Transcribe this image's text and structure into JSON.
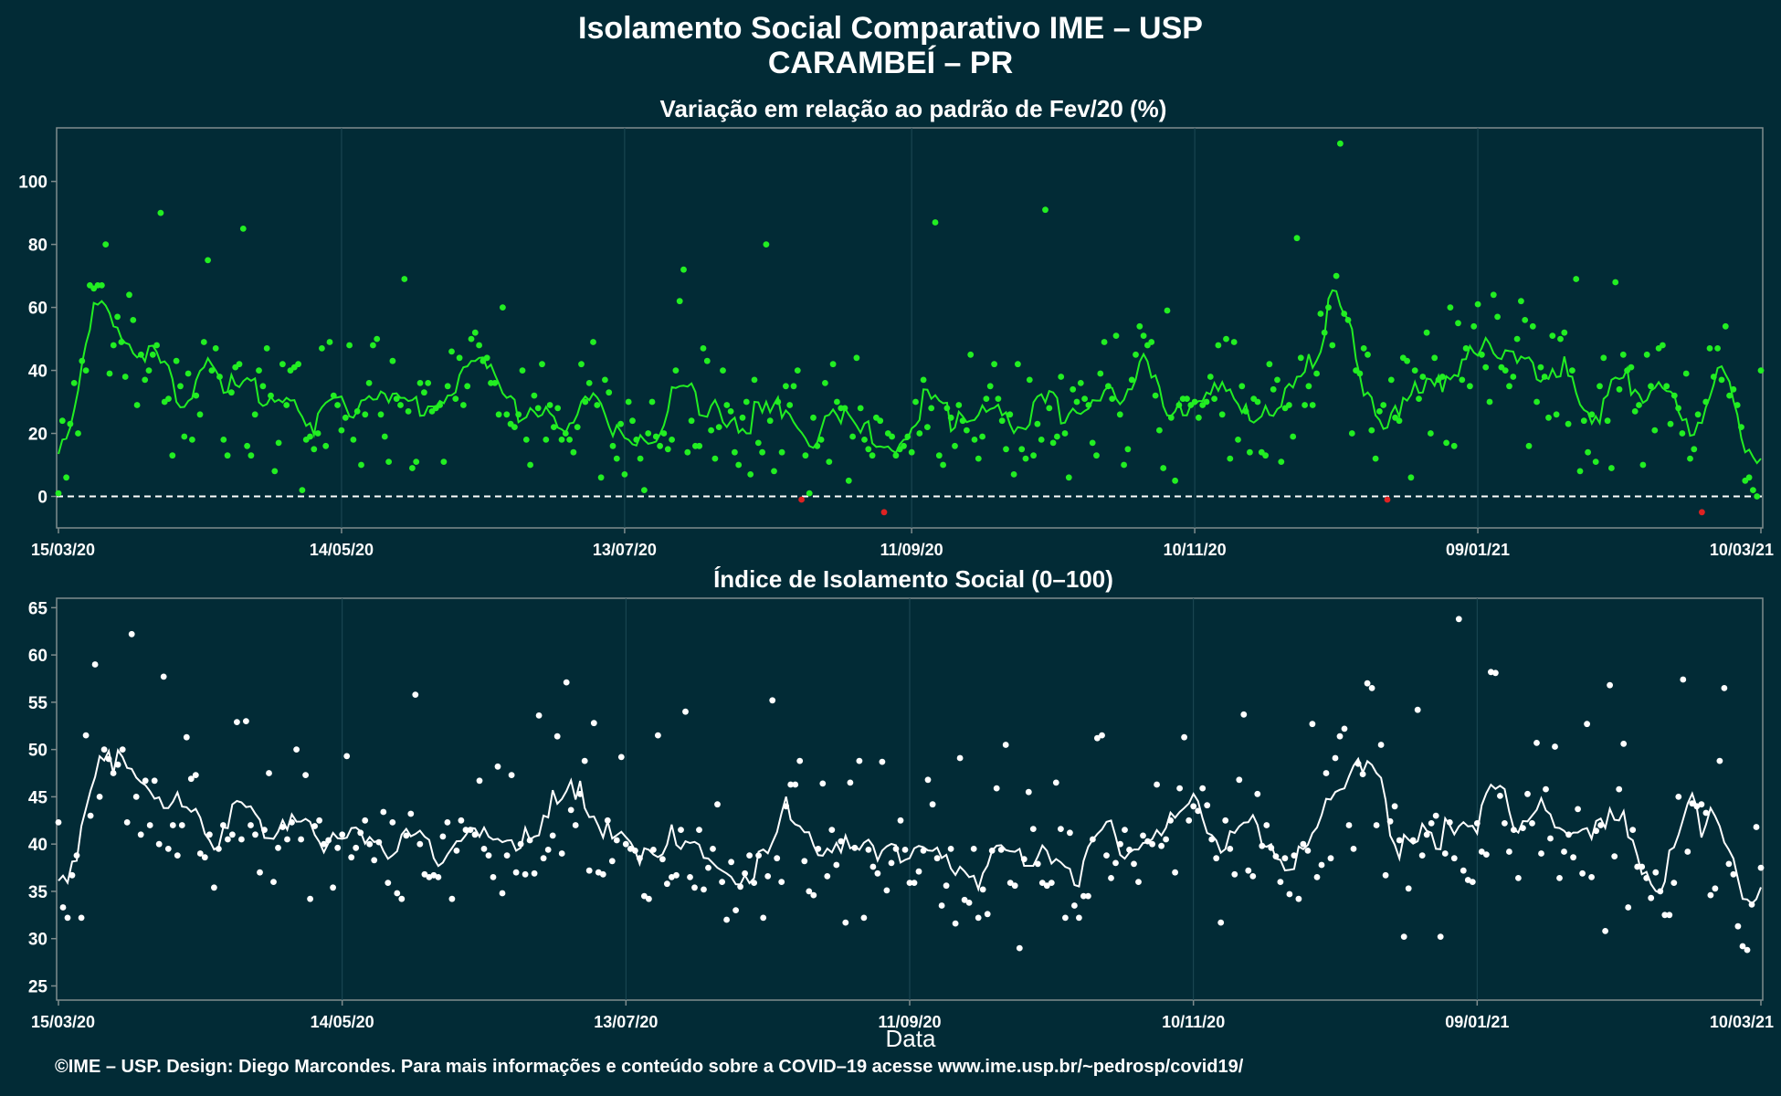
{
  "header": {
    "title": "Isolamento Social Comparativo IME – USP",
    "subtitle": "CARAMBEÍ – PR"
  },
  "footer": {
    "credit": "©IME – USP. Design: Diego Marcondes. Para mais informações e conteúdo sobre a COVID–19 acesse www.ime.usp.br/~pedrosp/covid19/"
  },
  "colors": {
    "background": "#022b36",
    "panel_border": "#7f8c8d",
    "grid": "#1e4a55",
    "variation_points": "#22ee22",
    "variation_line": "#22ee22",
    "negative_points": "#dd2222",
    "index_points": "#ffffff",
    "index_line": "#ffffff"
  },
  "chart_data": [
    {
      "type": "scatter",
      "title": "Variação em relação ao padrão de Fev/20 (%)",
      "xlabel": "",
      "ylabel": "",
      "x_tick_labels": [
        "15/03/20",
        "14/05/20",
        "13/07/20",
        "11/09/20",
        "10/11/20",
        "09/01/21",
        "10/03/21"
      ],
      "y_ticks": [
        0,
        20,
        40,
        60,
        80,
        100
      ],
      "ylim": [
        -10,
        117
      ],
      "reference_line": 0,
      "grid": true,
      "series": [
        {
          "values": [
            1,
            24,
            6,
            23,
            36,
            20,
            43,
            40,
            67,
            66,
            67,
            67,
            80,
            39,
            48,
            57,
            49,
            38,
            64,
            56,
            29,
            45,
            37,
            40,
            45,
            48,
            90,
            30,
            31,
            13,
            43,
            35,
            19,
            39,
            18,
            32,
            26,
            49,
            75,
            40,
            47,
            38,
            18,
            13,
            33,
            41,
            42,
            85,
            16,
            13,
            26,
            40,
            35,
            47,
            32,
            8,
            17,
            42,
            29,
            40,
            41,
            42,
            2,
            18,
            19,
            15,
            20,
            47,
            16,
            49,
            32,
            29,
            21,
            25,
            48,
            18,
            27,
            10,
            26,
            36,
            48,
            50,
            26,
            19,
            11,
            43,
            31,
            29,
            69,
            27,
            9,
            11,
            36,
            33,
            36,
            27,
            28,
            29,
            11,
            35,
            46,
            31,
            44,
            29,
            35,
            50,
            52,
            48,
            43,
            44,
            36,
            36,
            26,
            60,
            26,
            23,
            22,
            26,
            40,
            18,
            10,
            32,
            28,
            42,
            18,
            29,
            22,
            28,
            18,
            20,
            18,
            14,
            22,
            42,
            30,
            36,
            49,
            29,
            6,
            37,
            33,
            16,
            12,
            23,
            7,
            30,
            24,
            18,
            12,
            2,
            20,
            30,
            19,
            16,
            20,
            15,
            18,
            40,
            62,
            72,
            14,
            24,
            16,
            16,
            47,
            43,
            21,
            12,
            22,
            40,
            29,
            27,
            14,
            10,
            25,
            30,
            7,
            37,
            17,
            14,
            80,
            24,
            8,
            30,
            14,
            35,
            29,
            35,
            40,
            -1,
            13,
            1,
            25,
            16,
            18,
            36,
            11,
            42,
            30,
            28,
            28,
            5,
            19,
            44,
            28,
            18,
            15,
            13,
            25,
            24,
            -5,
            20,
            19,
            13,
            15,
            16,
            19,
            14,
            30,
            20,
            37,
            22,
            28,
            87,
            13,
            10,
            28,
            25,
            16,
            29,
            24,
            21,
            45,
            18,
            12,
            19,
            31,
            35,
            42,
            31,
            24,
            15,
            26,
            7,
            42,
            15,
            12,
            37,
            13,
            23,
            18,
            91,
            28,
            17,
            19,
            38,
            20,
            6,
            34,
            30,
            36,
            31,
            29,
            17,
            13,
            39,
            49,
            35,
            31,
            51,
            26,
            10,
            15,
            37,
            45,
            54,
            51,
            48,
            49,
            32,
            21,
            9,
            59,
            25,
            5,
            29,
            31,
            31,
            29,
            30,
            25,
            29,
            30,
            38,
            31,
            48,
            26,
            50,
            12,
            49,
            18,
            35,
            27,
            14,
            31,
            30,
            14,
            13,
            42,
            34,
            37,
            11,
            28,
            29,
            19,
            82,
            44,
            29,
            35,
            29,
            39,
            58,
            52,
            60,
            48,
            70,
            112,
            58,
            56,
            20,
            40,
            39,
            47,
            45,
            21,
            12,
            27,
            29,
            -1,
            37,
            25,
            24,
            44,
            43,
            6,
            40,
            31,
            38,
            52,
            20,
            44,
            37,
            38,
            17,
            60,
            16,
            55,
            37,
            47,
            35,
            54,
            61,
            45,
            41,
            30,
            64,
            57,
            41,
            40,
            35,
            38,
            50,
            62,
            56,
            16,
            54,
            30,
            41,
            38,
            25,
            51,
            26,
            50,
            52,
            23,
            40,
            69,
            8,
            24,
            14,
            26,
            11,
            35,
            44,
            24,
            9,
            68,
            34,
            45,
            40,
            41,
            27,
            29,
            10,
            45,
            35,
            21,
            47,
            48,
            35,
            23,
            32,
            28,
            20,
            39,
            12,
            15,
            26,
            -5,
            30,
            47,
            38,
            47,
            37,
            54,
            32,
            34,
            29,
            22,
            5,
            6,
            2,
            0,
            40
          ],
          "values_note_none": null
        },
        {
          "smoothing_window": 7,
          "line": true
        }
      ]
    },
    {
      "type": "scatter",
      "title": "Índice de Isolamento Social (0–100)",
      "xlabel": "Data",
      "ylabel": "",
      "x_tick_labels": [
        "15/03/20",
        "14/05/20",
        "13/07/20",
        "11/09/20",
        "10/11/20",
        "09/01/21",
        "10/03/21"
      ],
      "y_ticks": [
        25,
        30,
        35,
        40,
        45,
        50,
        55,
        60,
        65
      ],
      "ylim": [
        23.5,
        66
      ],
      "grid": true,
      "series": [
        {
          "values": [
            42.3,
            33.3,
            32.2,
            36.7,
            38.8,
            32.2,
            51.5,
            43,
            59,
            45,
            50,
            49,
            47.5,
            48.4,
            50,
            42.3,
            62.2,
            45,
            41,
            46.7,
            42,
            46.7,
            40,
            57.7,
            39.5,
            42,
            38.8,
            42,
            51.3,
            46.9,
            47.3,
            39,
            38.6,
            41,
            35.4,
            39.5,
            42,
            40.5,
            41,
            52.9,
            40.5,
            53,
            42,
            41,
            37,
            41.5,
            47.5,
            36,
            39.6,
            41.8,
            40.5,
            42.3,
            50,
            40.5,
            47.3,
            34.2,
            41.9,
            42.5,
            40,
            40.4,
            35.4,
            39.6,
            41,
            49.3,
            38.6,
            39.6,
            41.2,
            42.5,
            40,
            38.3,
            40.2,
            43.4,
            35.9,
            42.3,
            34.8,
            34.2,
            40.9,
            43.2,
            55.8,
            40,
            36.8,
            36.5,
            36.7,
            36.5,
            40.8,
            42.3,
            34.2,
            39.3,
            42.5,
            41.5,
            41.5,
            41,
            46.7,
            39.5,
            38.8,
            36.5,
            48.2,
            34.8,
            38.8,
            47.3,
            37,
            40,
            36.8,
            40.4,
            36.9,
            53.6,
            38.5,
            39.4,
            40.9,
            51.4,
            39,
            57.1,
            43.6,
            42,
            45.3,
            48.8,
            37.2,
            52.8,
            37,
            36.8,
            42.5,
            38.2,
            40.4,
            49.2,
            40,
            39.5,
            39.3,
            38.5,
            34.5,
            34.2,
            39.4,
            51.5,
            38.4,
            35.8,
            36.5,
            36.7,
            41.5,
            54,
            36.5,
            35.4,
            41.5,
            35.2,
            37.5,
            39.5,
            44.2,
            36,
            32,
            38.1,
            33,
            35.5,
            36.9,
            38.8,
            35.9,
            38.8,
            32.2,
            36.6,
            55.2,
            38.5,
            36,
            44,
            46.3,
            46.3,
            48.8,
            38.2,
            35,
            34.6,
            39.5,
            46.4,
            36.6,
            41.5,
            37.8,
            40.3,
            31.7,
            46.5,
            39.6,
            48.8,
            32.2,
            39.4,
            37.6,
            36.9,
            48.7,
            35.1,
            38,
            39.5,
            42.5,
            39.4,
            35.9,
            35.9,
            37.1,
            39.3,
            46.8,
            44.2,
            38.5,
            33.5,
            35.6,
            39.5,
            31.6,
            49.1,
            34.1,
            33.8,
            39.5,
            32.2,
            35.2,
            32.6,
            39.3,
            45.9,
            39.4,
            50.5,
            35.9,
            35.6,
            29,
            38.4,
            45.5,
            41.6,
            37.9,
            35.9,
            35.6,
            35.9,
            46.5,
            41.6,
            32.2,
            41.2,
            33.5,
            32.2,
            34.5,
            34.5,
            40.5,
            51.2,
            51.5,
            38.8,
            36.4,
            38,
            40,
            41.5,
            39.4,
            37.9,
            36,
            40.9,
            40.3,
            40,
            46.3,
            39.8,
            40.5,
            42.5,
            37,
            45.9,
            51.3,
            42.5,
            44,
            43.5,
            45.9,
            44.1,
            40.5,
            38.5,
            31.7,
            42.5,
            39.5,
            36.8,
            46.8,
            53.7,
            37.2,
            36.6,
            45.3,
            39.8,
            42,
            39.6,
            38.7,
            36,
            38.5,
            34.7,
            38.8,
            34.2,
            40,
            39.3,
            52.7,
            36.5,
            37.8,
            47.5,
            38.5,
            49.1,
            51.4,
            52.2,
            42,
            39.5,
            48.5,
            47.4,
            57,
            56.5,
            42,
            50.5,
            36.7,
            42.4,
            44,
            40.4,
            30.2,
            35.3,
            40.4,
            54.2,
            38.8,
            41,
            42.2,
            43,
            30.2,
            39,
            42.3,
            38.5,
            63.8,
            37.2,
            36.2,
            36,
            42.2,
            39.2,
            38.9,
            58.2,
            58.1,
            45.1,
            42.2,
            39.2,
            41.5,
            36.4,
            41.7,
            45.3,
            42.2,
            50.7,
            39,
            45.8,
            40.6,
            50.3,
            36.4,
            39.2,
            41,
            38.6,
            43.7,
            36.9,
            52.7,
            36.5,
            41.4,
            42,
            30.8,
            56.8,
            38.7,
            45.8,
            50.6,
            33.3,
            41.5,
            37.6,
            37.6,
            36.4,
            34.3,
            37,
            35,
            32.5,
            32.5,
            35.9,
            45,
            57.4,
            39.2,
            44.3,
            44,
            44.2,
            43.3,
            34.6,
            35.3,
            48.8,
            56.5,
            37.9,
            36.8,
            31.3,
            29.2,
            28.8,
            33.6,
            41.8,
            37.5
          ],
          "values_note_none": null
        },
        {
          "smoothing_window": 7,
          "line": true
        }
      ]
    }
  ]
}
